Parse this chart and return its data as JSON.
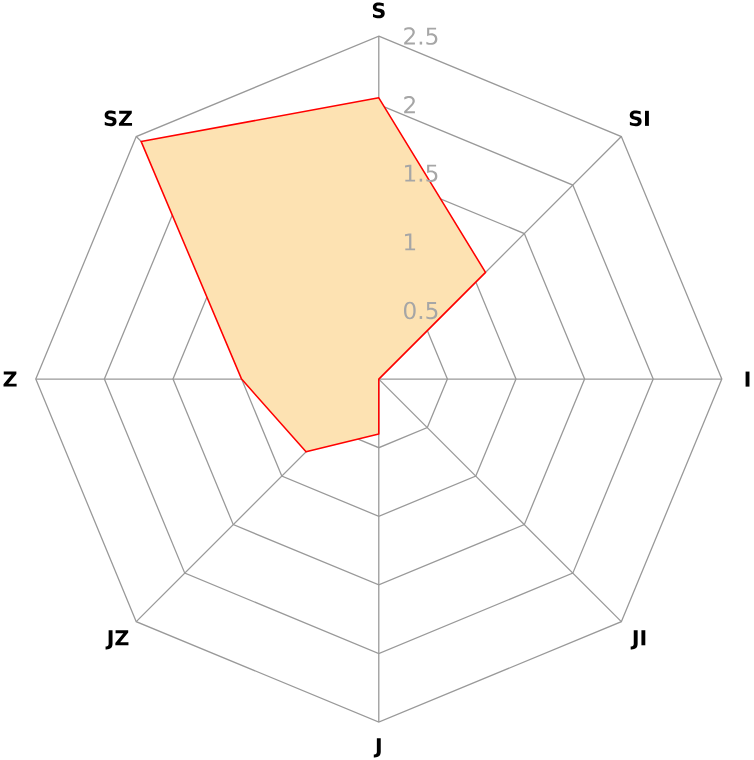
{
  "chart_data": {
    "type": "radar",
    "categories": [
      "S",
      "SI",
      "I",
      "JI",
      "J",
      "JZ",
      "Z",
      "SZ"
    ],
    "series": [
      {
        "color": "#fde2b2",
        "values": [
          2.05,
          1.1,
          0,
          0,
          0.4,
          0.75,
          1.0,
          2.45
        ]
      }
    ],
    "ylim": [
      0,
      2.5
    ],
    "yticks": [
      0.5,
      1,
      1.5,
      2,
      2.5
    ],
    "grid": true
  }
}
